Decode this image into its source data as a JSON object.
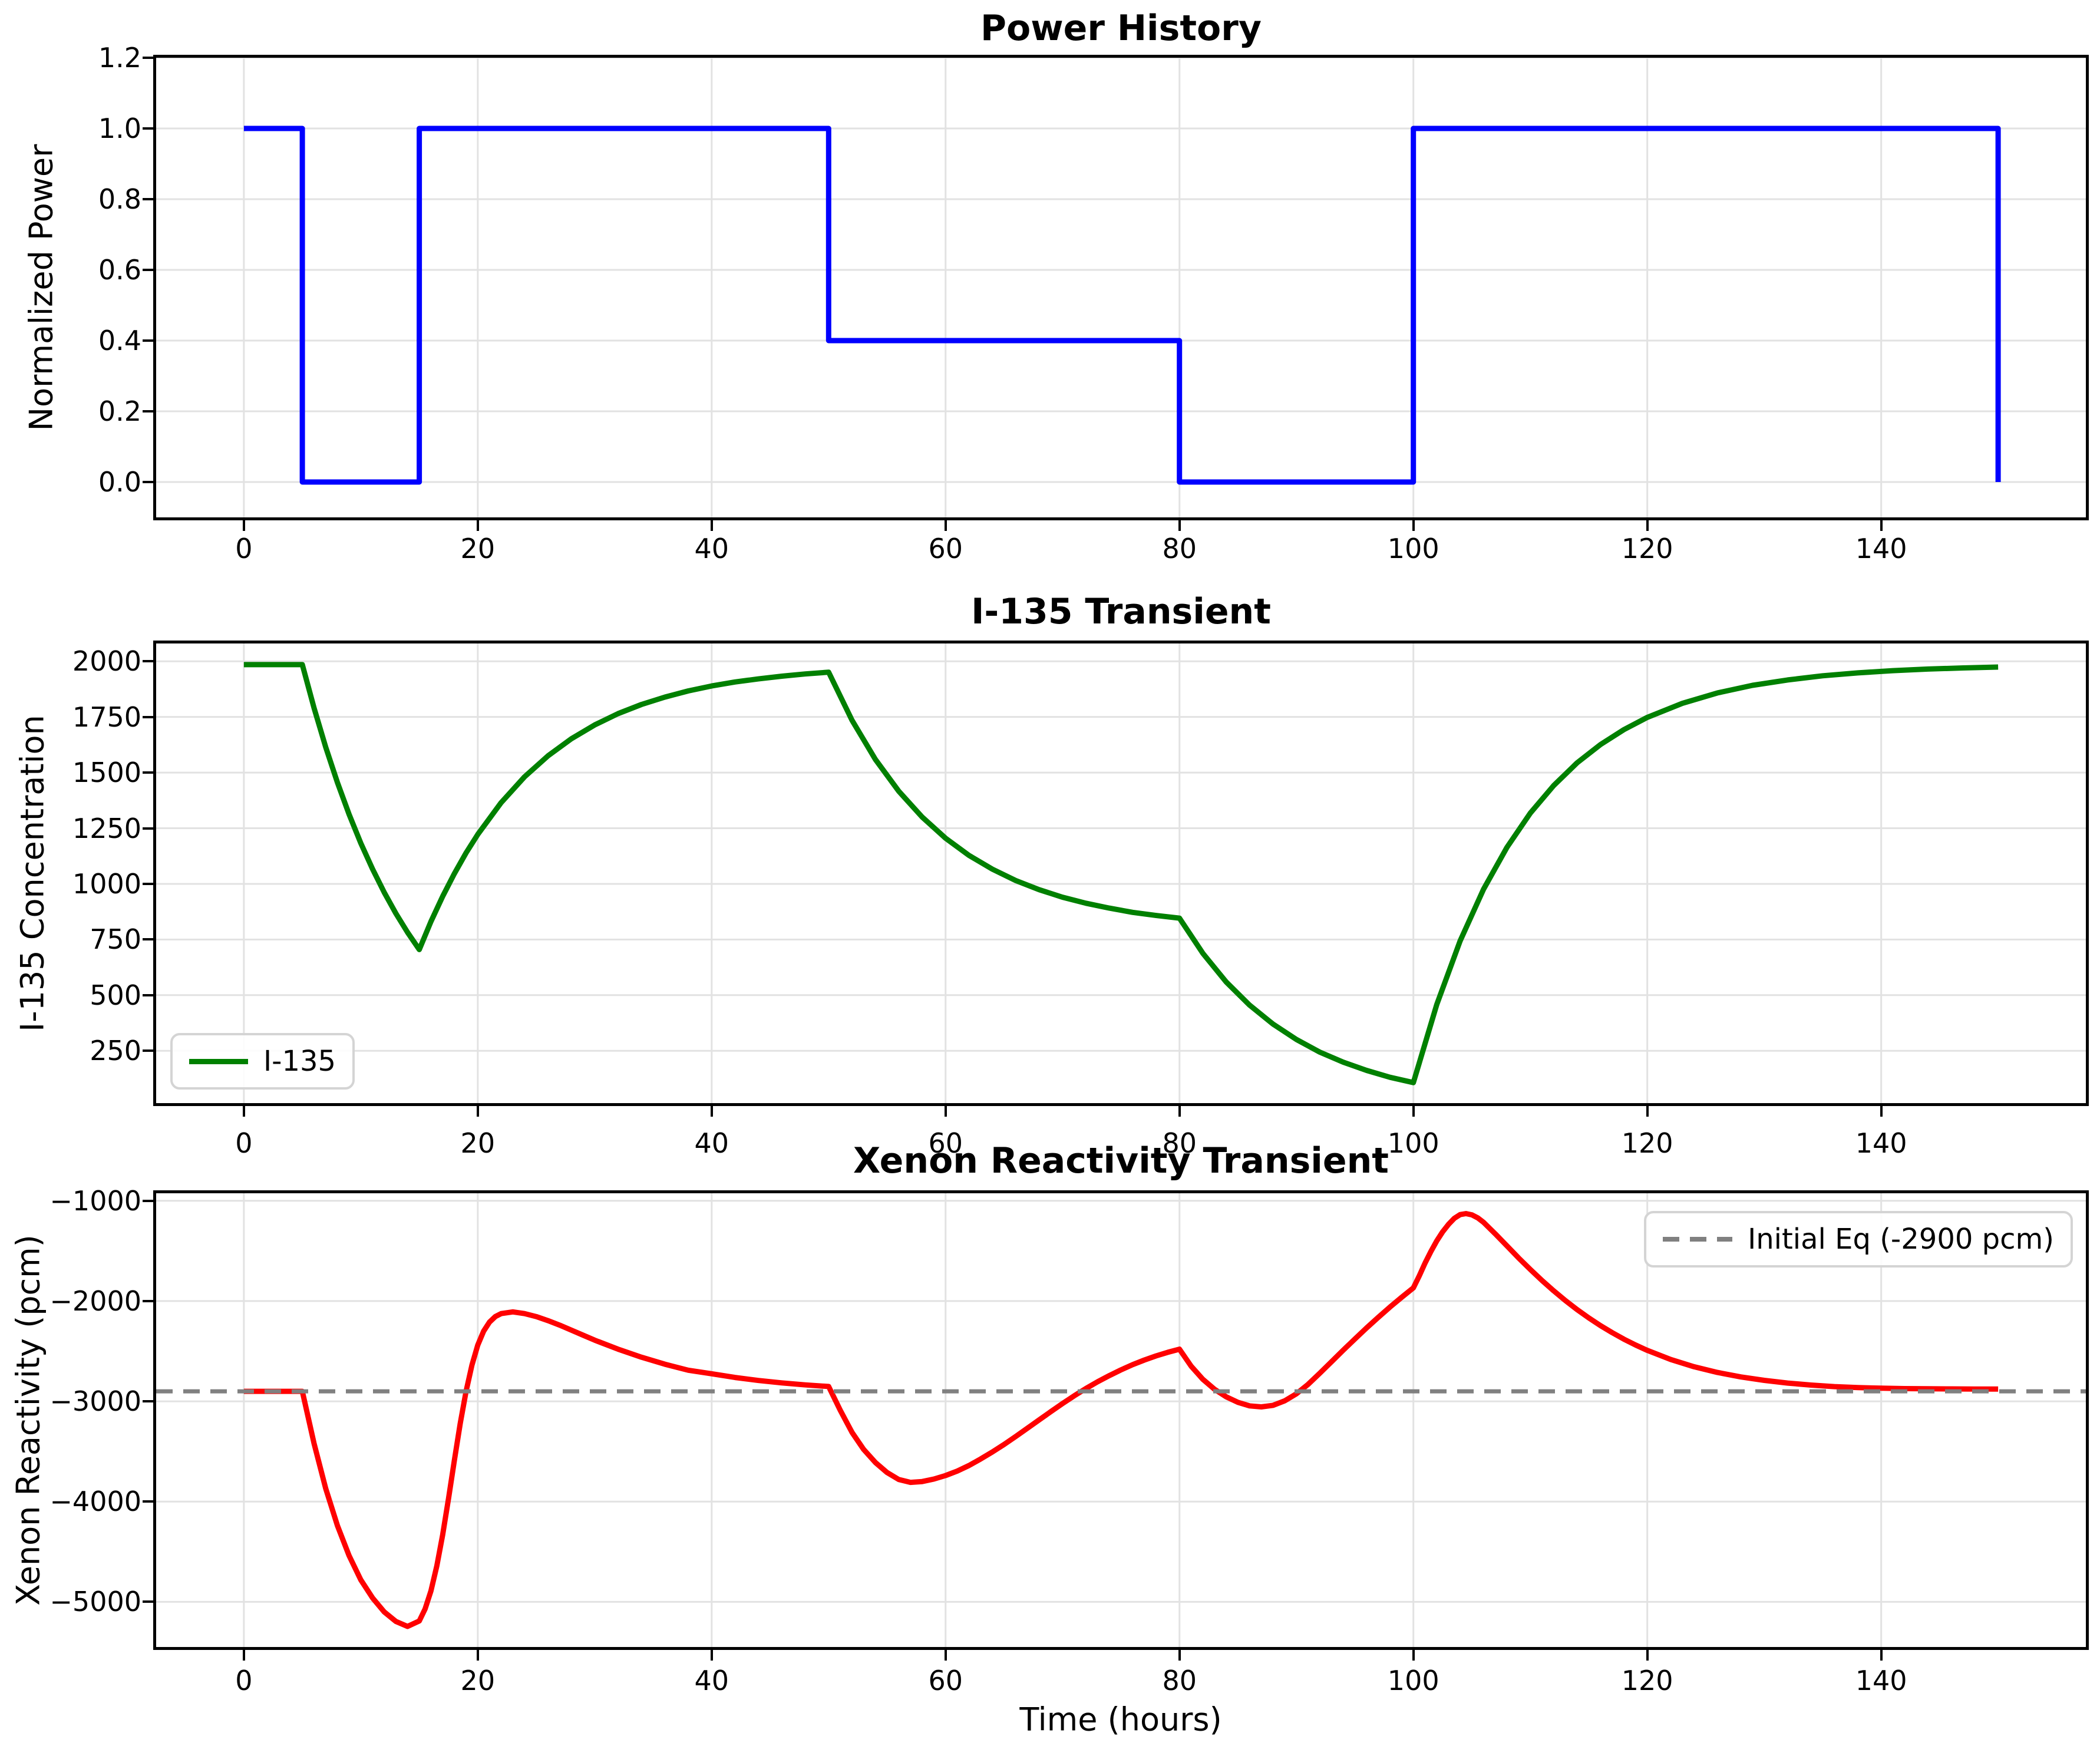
{
  "figure": {
    "background": "#ffffff",
    "text_color": "#000000",
    "grid_color": "#e2e2e2",
    "spine_color": "#000000"
  },
  "chart_data": [
    {
      "type": "line",
      "title": "Power History",
      "xlabel": "",
      "ylabel": "Normalized Power",
      "xlim": [
        -7.5,
        157.5
      ],
      "ylim": [
        -0.1,
        1.2
      ],
      "xticks": [
        0,
        20,
        40,
        60,
        80,
        100,
        120,
        140
      ],
      "xtick_labels": [
        "0",
        "20",
        "40",
        "60",
        "80",
        "100",
        "120",
        "140"
      ],
      "yticks": [
        0.0,
        0.2,
        0.4,
        0.6,
        0.8,
        1.0,
        1.2
      ],
      "ytick_labels": [
        "0.0",
        "0.2",
        "0.4",
        "0.6",
        "0.8",
        "1.0",
        "1.2"
      ],
      "grid": true,
      "legend": null,
      "series": [
        {
          "name": "Normalized Power",
          "color": "#0000ff",
          "line_width": 9,
          "line_style": "solid",
          "points": [
            [
              0,
              1
            ],
            [
              5,
              1
            ],
            [
              5,
              0
            ],
            [
              15,
              0
            ],
            [
              15,
              1
            ],
            [
              50,
              1
            ],
            [
              50,
              0.4
            ],
            [
              80,
              0.4
            ],
            [
              80,
              0
            ],
            [
              100,
              0
            ],
            [
              100,
              1
            ],
            [
              150,
              1
            ],
            [
              150,
              0
            ]
          ]
        }
      ]
    },
    {
      "type": "line",
      "title": "I-135 Transient",
      "xlabel": "",
      "ylabel": "I-135 Concentration",
      "xlim": [
        -7.5,
        157.5
      ],
      "ylim": [
        15,
        2080
      ],
      "xticks": [
        0,
        20,
        40,
        60,
        80,
        100,
        120,
        140
      ],
      "xtick_labels": [
        "0",
        "20",
        "40",
        "60",
        "80",
        "100",
        "120",
        "140"
      ],
      "yticks": [
        250,
        500,
        750,
        1000,
        1250,
        1500,
        1750,
        2000
      ],
      "ytick_labels": [
        "250",
        "500",
        "750",
        "1000",
        "1250",
        "1500",
        "1750",
        "2000"
      ],
      "grid": true,
      "legend": {
        "position": "lower-left",
        "entries": [
          {
            "label": "I-135",
            "color": "#008000",
            "line_style": "solid"
          }
        ]
      },
      "series": [
        {
          "name": "I-135",
          "color": "#008000",
          "line_width": 9,
          "line_style": "solid",
          "points": [
            [
              0,
              1985
            ],
            [
              5,
              1985
            ],
            [
              6,
              1790
            ],
            [
              7,
              1614
            ],
            [
              8,
              1455
            ],
            [
              9,
              1312
            ],
            [
              10,
              1183
            ],
            [
              11,
              1067
            ],
            [
              12,
              962
            ],
            [
              13,
              867
            ],
            [
              14,
              782
            ],
            [
              15,
              705
            ],
            [
              16,
              831
            ],
            [
              17,
              944
            ],
            [
              18,
              1046
            ],
            [
              19,
              1139
            ],
            [
              20,
              1222
            ],
            [
              22,
              1365
            ],
            [
              24,
              1481
            ],
            [
              26,
              1575
            ],
            [
              28,
              1652
            ],
            [
              30,
              1714
            ],
            [
              32,
              1765
            ],
            [
              34,
              1806
            ],
            [
              36,
              1839
            ],
            [
              38,
              1867
            ],
            [
              40,
              1889
            ],
            [
              42,
              1907
            ],
            [
              44,
              1921
            ],
            [
              46,
              1933
            ],
            [
              48,
              1943
            ],
            [
              50,
              1951
            ],
            [
              52,
              1735
            ],
            [
              54,
              1559
            ],
            [
              56,
              1416
            ],
            [
              58,
              1300
            ],
            [
              60,
              1205
            ],
            [
              62,
              1128
            ],
            [
              64,
              1066
            ],
            [
              66,
              1015
            ],
            [
              68,
              974
            ],
            [
              70,
              940
            ],
            [
              72,
              913
            ],
            [
              74,
              891
            ],
            [
              76,
              872
            ],
            [
              78,
              858
            ],
            [
              80,
              846
            ],
            [
              82,
              688
            ],
            [
              84,
              559
            ],
            [
              86,
              455
            ],
            [
              88,
              370
            ],
            [
              90,
              301
            ],
            [
              92,
              244
            ],
            [
              94,
              199
            ],
            [
              96,
              162
            ],
            [
              98,
              131
            ],
            [
              100,
              107
            ],
            [
              102,
              458
            ],
            [
              104,
              744
            ],
            [
              106,
              976
            ],
            [
              108,
              1164
            ],
            [
              110,
              1318
            ],
            [
              112,
              1442
            ],
            [
              114,
              1544
            ],
            [
              116,
              1626
            ],
            [
              118,
              1693
            ],
            [
              120,
              1748
            ],
            [
              123,
              1811
            ],
            [
              126,
              1858
            ],
            [
              129,
              1892
            ],
            [
              132,
              1916
            ],
            [
              135,
              1935
            ],
            [
              138,
              1948
            ],
            [
              141,
              1958
            ],
            [
              144,
              1965
            ],
            [
              147,
              1970
            ],
            [
              150,
              1974
            ]
          ]
        }
      ]
    },
    {
      "type": "line",
      "title": "Xenon Reactivity Transient",
      "xlabel": "Time (hours)",
      "ylabel": "Xenon Reactivity (pcm)",
      "xlim": [
        -7.5,
        157.5
      ],
      "ylim": [
        -5450,
        -925
      ],
      "xticks": [
        0,
        20,
        40,
        60,
        80,
        100,
        120,
        140
      ],
      "xtick_labels": [
        "0",
        "20",
        "40",
        "60",
        "80",
        "100",
        "120",
        "140"
      ],
      "yticks": [
        -5000,
        -4000,
        -3000,
        -2000,
        -1000
      ],
      "ytick_labels": [
        "−5000",
        "−4000",
        "−3000",
        "−2000",
        "−1000"
      ],
      "grid": true,
      "reference_line": {
        "value": -2900,
        "label": "Initial Eq (-2900 pcm)"
      },
      "legend": {
        "position": "upper-right",
        "entries": [
          {
            "label": "Initial Eq (-2900 pcm)",
            "color": "#808080",
            "line_style": "dashed"
          }
        ]
      },
      "series": [
        {
          "name": "Xenon Reactivity",
          "color": "#ff0000",
          "line_width": 9,
          "line_style": "solid",
          "points": [
            [
              0,
              -2900
            ],
            [
              5,
              -2900
            ],
            [
              6,
              -3420
            ],
            [
              7,
              -3870
            ],
            [
              8,
              -4240
            ],
            [
              9,
              -4540
            ],
            [
              10,
              -4780
            ],
            [
              11,
              -4960
            ],
            [
              12,
              -5100
            ],
            [
              13,
              -5195
            ],
            [
              14,
              -5245
            ],
            [
              15,
              -5190
            ],
            [
              15.5,
              -5070
            ],
            [
              16,
              -4890
            ],
            [
              16.5,
              -4640
            ],
            [
              17,
              -4330
            ],
            [
              17.5,
              -3970
            ],
            [
              18,
              -3590
            ],
            [
              18.5,
              -3220
            ],
            [
              19,
              -2900
            ],
            [
              19.5,
              -2640
            ],
            [
              20,
              -2440
            ],
            [
              20.5,
              -2300
            ],
            [
              21,
              -2210
            ],
            [
              21.5,
              -2155
            ],
            [
              22,
              -2125
            ],
            [
              23,
              -2108
            ],
            [
              24,
              -2125
            ],
            [
              25,
              -2155
            ],
            [
              26,
              -2195
            ],
            [
              27,
              -2240
            ],
            [
              28,
              -2290
            ],
            [
              29,
              -2340
            ],
            [
              30,
              -2390
            ],
            [
              32,
              -2480
            ],
            [
              34,
              -2560
            ],
            [
              36,
              -2630
            ],
            [
              38,
              -2690
            ],
            [
              40,
              -2725
            ],
            [
              42,
              -2762
            ],
            [
              44,
              -2792
            ],
            [
              46,
              -2816
            ],
            [
              48,
              -2836
            ],
            [
              50,
              -2852
            ],
            [
              51,
              -3090
            ],
            [
              52,
              -3310
            ],
            [
              53,
              -3480
            ],
            [
              54,
              -3610
            ],
            [
              55,
              -3710
            ],
            [
              56,
              -3780
            ],
            [
              57,
              -3808
            ],
            [
              58,
              -3800
            ],
            [
              59,
              -3775
            ],
            [
              60,
              -3740
            ],
            [
              61,
              -3695
            ],
            [
              62,
              -3640
            ],
            [
              63,
              -3575
            ],
            [
              64,
              -3505
            ],
            [
              65,
              -3430
            ],
            [
              66,
              -3350
            ],
            [
              67,
              -3268
            ],
            [
              68,
              -3185
            ],
            [
              69,
              -3103
            ],
            [
              70,
              -3022
            ],
            [
              71,
              -2945
            ],
            [
              72,
              -2872
            ],
            [
              73,
              -2805
            ],
            [
              74,
              -2743
            ],
            [
              75,
              -2686
            ],
            [
              76,
              -2634
            ],
            [
              77,
              -2588
            ],
            [
              78,
              -2547
            ],
            [
              79,
              -2511
            ],
            [
              80,
              -2480
            ],
            [
              81,
              -2650
            ],
            [
              82,
              -2780
            ],
            [
              83,
              -2880
            ],
            [
              84,
              -2955
            ],
            [
              85,
              -3010
            ],
            [
              86,
              -3045
            ],
            [
              87,
              -3055
            ],
            [
              88,
              -3040
            ],
            [
              89,
              -2995
            ],
            [
              90,
              -2925
            ],
            [
              91,
              -2830
            ],
            [
              92,
              -2720
            ],
            [
              93,
              -2605
            ],
            [
              94,
              -2490
            ],
            [
              95,
              -2378
            ],
            [
              96,
              -2268
            ],
            [
              97,
              -2162
            ],
            [
              98,
              -2060
            ],
            [
              99,
              -1962
            ],
            [
              100,
              -1868
            ],
            [
              100.5,
              -1750
            ],
            [
              101,
              -1620
            ],
            [
              101.5,
              -1505
            ],
            [
              102,
              -1400
            ],
            [
              102.5,
              -1310
            ],
            [
              103,
              -1235
            ],
            [
              103.5,
              -1175
            ],
            [
              104,
              -1138
            ],
            [
              104.5,
              -1128
            ],
            [
              105,
              -1140
            ],
            [
              105.5,
              -1170
            ],
            [
              106,
              -1215
            ],
            [
              107,
              -1330
            ],
            [
              108,
              -1450
            ],
            [
              109,
              -1570
            ],
            [
              110,
              -1685
            ],
            [
              111,
              -1795
            ],
            [
              112,
              -1898
            ],
            [
              113,
              -1995
            ],
            [
              114,
              -2085
            ],
            [
              115,
              -2168
            ],
            [
              116,
              -2245
            ],
            [
              117,
              -2315
            ],
            [
              118,
              -2380
            ],
            [
              119,
              -2438
            ],
            [
              120,
              -2492
            ],
            [
              122,
              -2583
            ],
            [
              124,
              -2655
            ],
            [
              126,
              -2712
            ],
            [
              128,
              -2757
            ],
            [
              130,
              -2791
            ],
            [
              132,
              -2818
            ],
            [
              134,
              -2838
            ],
            [
              136,
              -2853
            ],
            [
              138,
              -2863
            ],
            [
              140,
              -2869
            ],
            [
              142,
              -2873
            ],
            [
              144,
              -2875
            ],
            [
              146,
              -2876
            ],
            [
              148,
              -2877
            ],
            [
              150,
              -2878
            ]
          ]
        },
        {
          "name": "Initial Eq (-2900 pcm)",
          "color": "#808080",
          "line_width": 7,
          "line_style": "dashed",
          "points": [
            [
              -7.5,
              -2900
            ],
            [
              157.5,
              -2900
            ]
          ]
        }
      ]
    }
  ]
}
